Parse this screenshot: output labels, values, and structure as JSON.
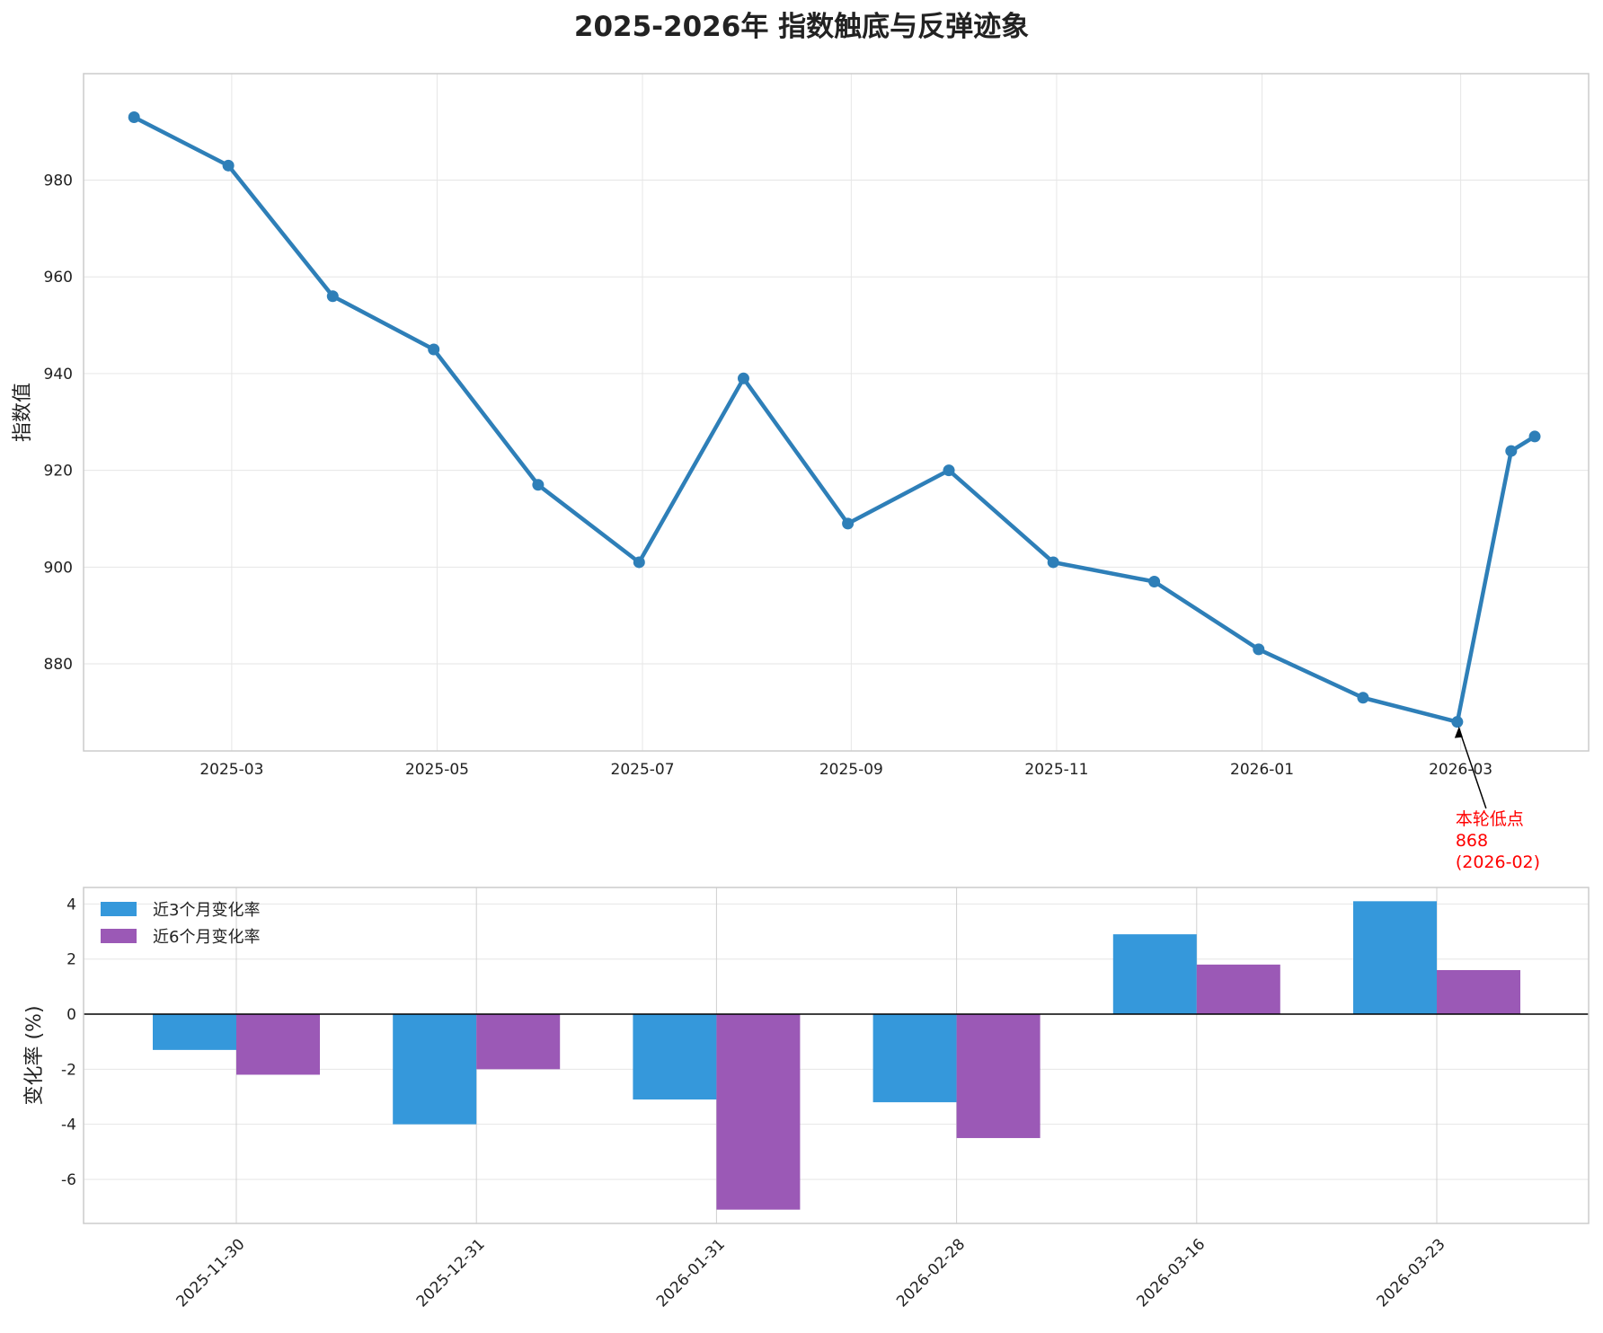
{
  "title": "2025-2026年 指数触底与反弹迹象",
  "colors": {
    "line": "#2e7fb8",
    "bar3": "#3598db",
    "bar6": "#9b59b6",
    "annotation": "#ff0000",
    "grid": "#e6e6e6",
    "spine": "#cccccc"
  },
  "chart_data": [
    {
      "type": "line",
      "ylabel": "指数值",
      "xaxis": "date",
      "x": [
        "2025-01-31",
        "2025-02-28",
        "2025-03-31",
        "2025-04-30",
        "2025-05-31",
        "2025-06-30",
        "2025-07-31",
        "2025-08-31",
        "2025-09-30",
        "2025-10-31",
        "2025-11-30",
        "2025-12-31",
        "2026-01-31",
        "2026-02-28",
        "2026-03-16",
        "2026-03-23"
      ],
      "values": [
        993,
        983,
        956,
        945,
        917,
        901,
        939,
        909,
        920,
        901,
        897,
        883,
        873,
        868,
        924,
        927
      ],
      "xticks": [
        "2025-03",
        "2025-05",
        "2025-07",
        "2025-09",
        "2025-11",
        "2026-01",
        "2026-03"
      ],
      "yticks": [
        880,
        900,
        920,
        940,
        960,
        980
      ],
      "ylim": [
        862,
        1002
      ],
      "xlim": [
        "2025-01-16",
        "2026-04-08"
      ],
      "grid": true,
      "annotation": {
        "lines": [
          "本轮低点",
          "868",
          "(2026-02)"
        ],
        "point_x": "2026-02-28",
        "point_y": 868
      }
    },
    {
      "type": "bar",
      "ylabel": "变化率 (%)",
      "categories": [
        "2025-11-30",
        "2025-12-31",
        "2026-01-31",
        "2026-02-28",
        "2026-03-16",
        "2026-03-23"
      ],
      "series": [
        {
          "name": "近3个月变化率",
          "values": [
            -1.3,
            -4.0,
            -3.1,
            -3.2,
            2.9,
            4.1
          ]
        },
        {
          "name": "近6个月变化率",
          "values": [
            -2.2,
            -2.0,
            -7.1,
            -4.5,
            1.8,
            1.6
          ]
        }
      ],
      "yticks": [
        -6,
        -4,
        -2,
        0,
        2,
        4
      ],
      "ylim": [
        -7.6,
        4.6
      ],
      "grid": true,
      "legend": "top-left"
    }
  ]
}
